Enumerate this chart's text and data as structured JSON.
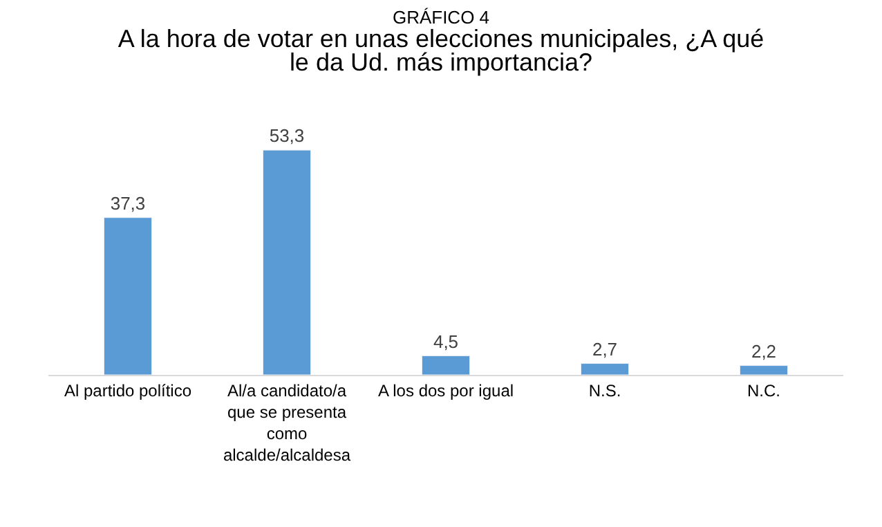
{
  "chart_data": {
    "type": "bar",
    "title": "GRÁFICO 4",
    "subtitle": "A la hora de votar en unas elecciones municipales, ¿A qué le da Ud. más importancia?",
    "categories": [
      "Al partido político",
      "Al/a candidato/a que se presenta como alcalde/alcaldesa",
      "A los dos por igual",
      "N.S.",
      "N.C."
    ],
    "values": [
      37.3,
      53.3,
      4.5,
      2.7,
      2.2
    ],
    "value_labels": [
      "37,3",
      "53,3",
      "4,5",
      "2,7",
      "2,2"
    ],
    "color": "#5b9bd5",
    "legend": false
  }
}
